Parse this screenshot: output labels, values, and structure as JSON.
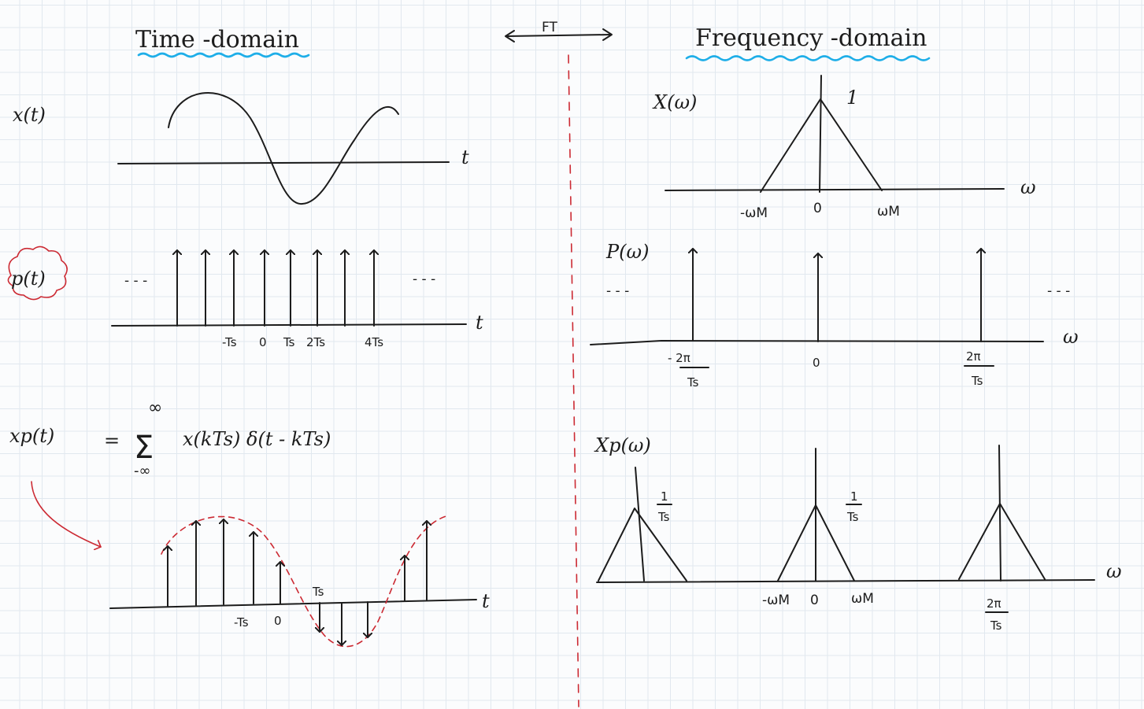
{
  "header": {
    "time_domain": "Time -domain",
    "transform": "FT",
    "frequency_domain": "Frequency -domain"
  },
  "time": {
    "x_label": "x(t)",
    "p_label": "p(t)",
    "xp_label": "xp(t)",
    "axis_var": "t",
    "ellipsis": "- - -",
    "p_ticks": [
      "-Ts",
      "0",
      "Ts",
      "2Ts",
      "4Ts"
    ],
    "xp_ticks": [
      "-Ts",
      "0",
      "Ts"
    ],
    "formula": {
      "eq": "=",
      "sum": "Σ",
      "upper": "∞",
      "lower": "-∞",
      "body": "x(kTs) δ(t - kTs)"
    }
  },
  "freq": {
    "X_label": "X(ω)",
    "P_label": "P(ω)",
    "Xp_label": "Xp(ω)",
    "axis_var": "ω",
    "ellipsis": "- - -",
    "X_peak": "1",
    "X_ticks": [
      "-ωM",
      "0",
      "ωM"
    ],
    "P_ticks": {
      "left_num": "- 2π",
      "left_den": "Ts",
      "center": "0",
      "right_num": "2π",
      "right_den": "Ts"
    },
    "Xp_amp_num": "1",
    "Xp_amp_den": "Ts",
    "Xp_ticks": {
      "minus_wm": "-ωM",
      "zero": "0",
      "plus_wm": "ωM",
      "right_num": "2π",
      "right_den": "Ts"
    }
  },
  "colors": {
    "ink": "#1c1c1c",
    "red": "#cc2a33",
    "blue_underline": "#1eaee8",
    "grid": "#e1e8ef"
  }
}
